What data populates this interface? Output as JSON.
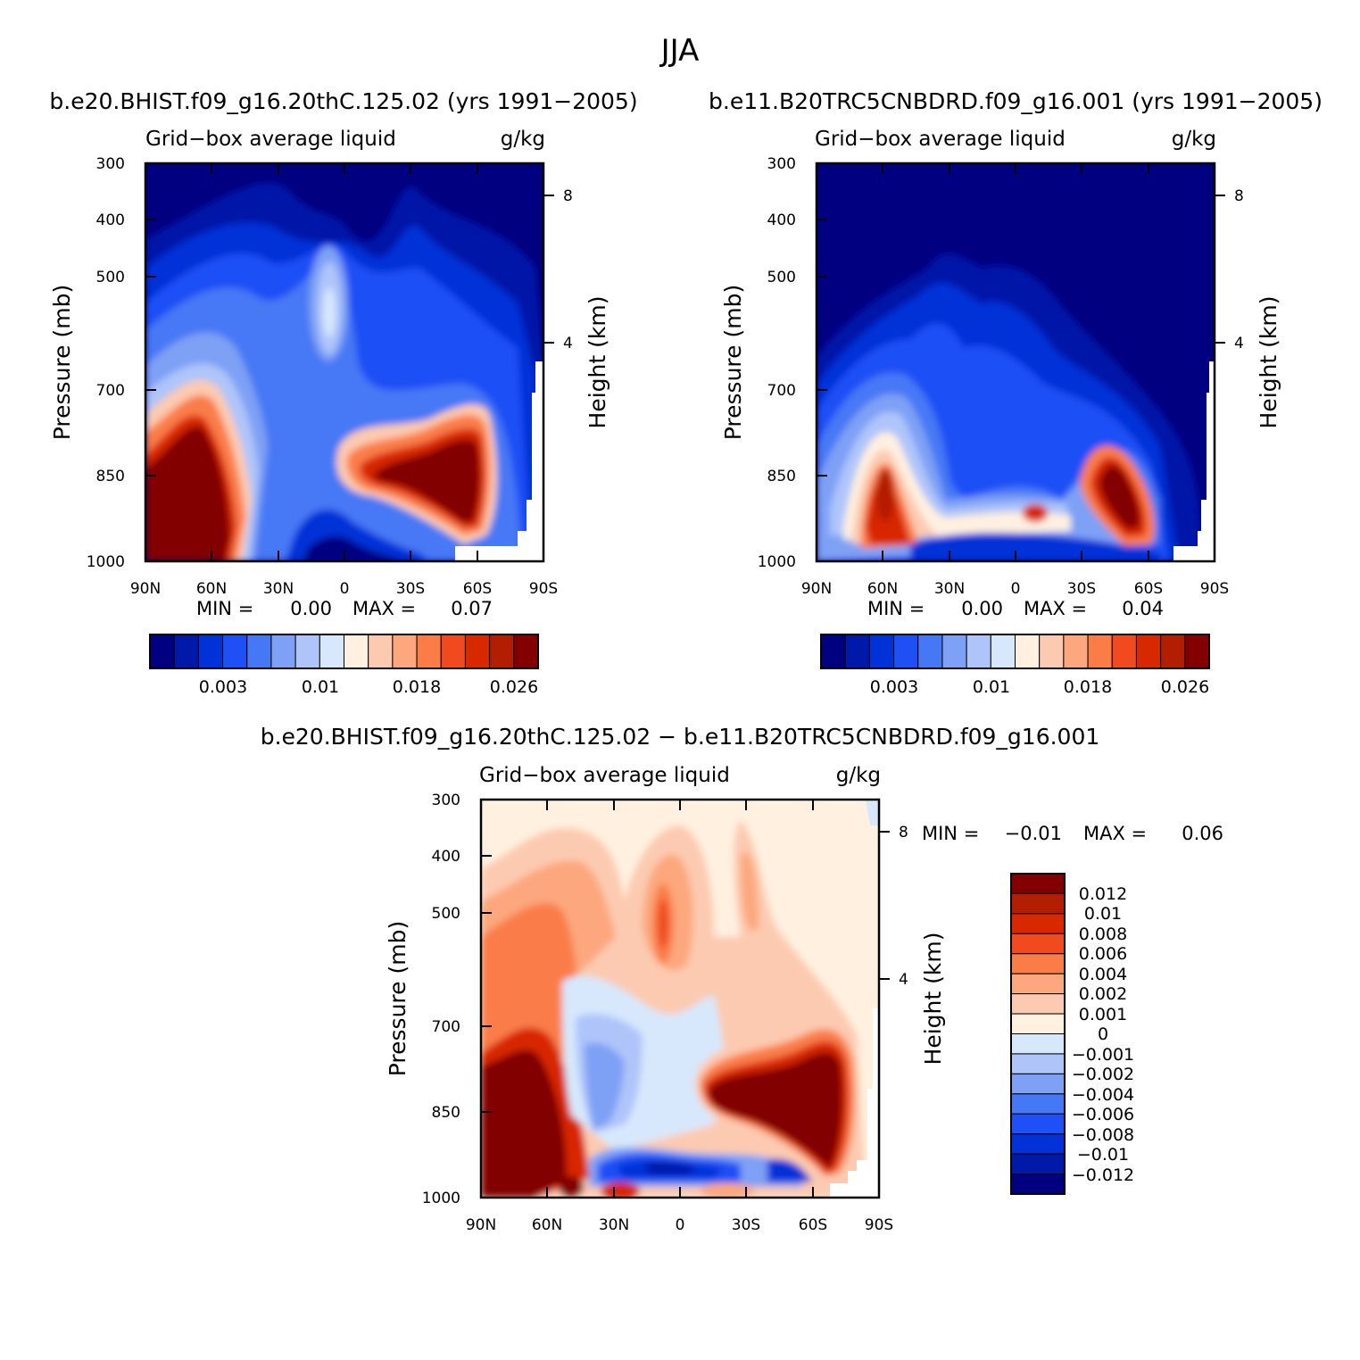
{
  "figure": {
    "title": "JJA"
  },
  "colors": {
    "seq": [
      "#000080",
      "#0019a8",
      "#0032d8",
      "#1e50f5",
      "#4678f5",
      "#7ea0f5",
      "#afc5fa",
      "#d7e8fc",
      "#fff0e0",
      "#fccab0",
      "#fca77d",
      "#fa7d48",
      "#f04a1e",
      "#d72800",
      "#b41e00",
      "#820000"
    ],
    "diff_top_to_bottom": [
      "#820000",
      "#b41e00",
      "#d72800",
      "#f04a1e",
      "#fa7d48",
      "#fca77d",
      "#fccab0",
      "#fff0e0",
      "#d7e8fc",
      "#afc5fa",
      "#7ea0f5",
      "#4678f5",
      "#1e50f5",
      "#0032d8",
      "#0019a8",
      "#000080"
    ]
  },
  "chart_data": [
    {
      "type": "heatmap",
      "title": "b.e20.BHIST.f09_g16.20thC.125.02 (yrs 1991−2005)",
      "left_label": "Grid−box average liquid",
      "right_label": "g/kg",
      "ylabel": "Pressure (mb)",
      "ylabel_right": "Height (km)",
      "x_ticks": [
        "90N",
        "60N",
        "30N",
        "0",
        "30S",
        "60S",
        "90S"
      ],
      "y_ticks": [
        "300",
        "400",
        "500",
        "700",
        "850",
        "1000"
      ],
      "height_ticks": [
        "8",
        "4"
      ],
      "min_label": "MIN =",
      "min_value": "0.00",
      "max_label": "MAX =",
      "max_value": "0.07",
      "colorbar_labels": [
        "0.003",
        "0.01",
        "0.018",
        "0.026"
      ]
    },
    {
      "type": "heatmap",
      "title": "b.e11.B20TRC5CNBDRD.f09_g16.001 (yrs 1991−2005)",
      "left_label": "Grid−box average liquid",
      "right_label": "g/kg",
      "ylabel": "Pressure (mb)",
      "ylabel_right": "Height (km)",
      "x_ticks": [
        "90N",
        "60N",
        "30N",
        "0",
        "30S",
        "60S",
        "90S"
      ],
      "y_ticks": [
        "300",
        "400",
        "500",
        "700",
        "850",
        "1000"
      ],
      "height_ticks": [
        "8",
        "4"
      ],
      "min_label": "MIN =",
      "min_value": "0.00",
      "max_label": "MAX =",
      "max_value": "0.04",
      "colorbar_labels": [
        "0.003",
        "0.01",
        "0.018",
        "0.026"
      ]
    },
    {
      "type": "heatmap",
      "title": "b.e20.BHIST.f09_g16.20thC.125.02 − b.e11.B20TRC5CNBDRD.f09_g16.001",
      "left_label": "Grid−box average liquid",
      "right_label": "g/kg",
      "ylabel": "Pressure (mb)",
      "ylabel_right": "Height (km)",
      "x_ticks": [
        "90N",
        "60N",
        "30N",
        "0",
        "30S",
        "60S",
        "90S"
      ],
      "y_ticks": [
        "300",
        "400",
        "500",
        "700",
        "850",
        "1000"
      ],
      "height_ticks": [
        "8",
        "4"
      ],
      "min_label": "MIN =",
      "min_value": "−0.01",
      "max_label": "MAX =",
      "max_value": "0.06",
      "colorbar_labels": [
        "0.012",
        "0.01",
        "0.008",
        "0.006",
        "0.004",
        "0.002",
        "0.001",
        "0",
        "−0.001",
        "−0.002",
        "−0.004",
        "−0.006",
        "−0.008",
        "−0.01",
        "−0.012"
      ]
    }
  ]
}
